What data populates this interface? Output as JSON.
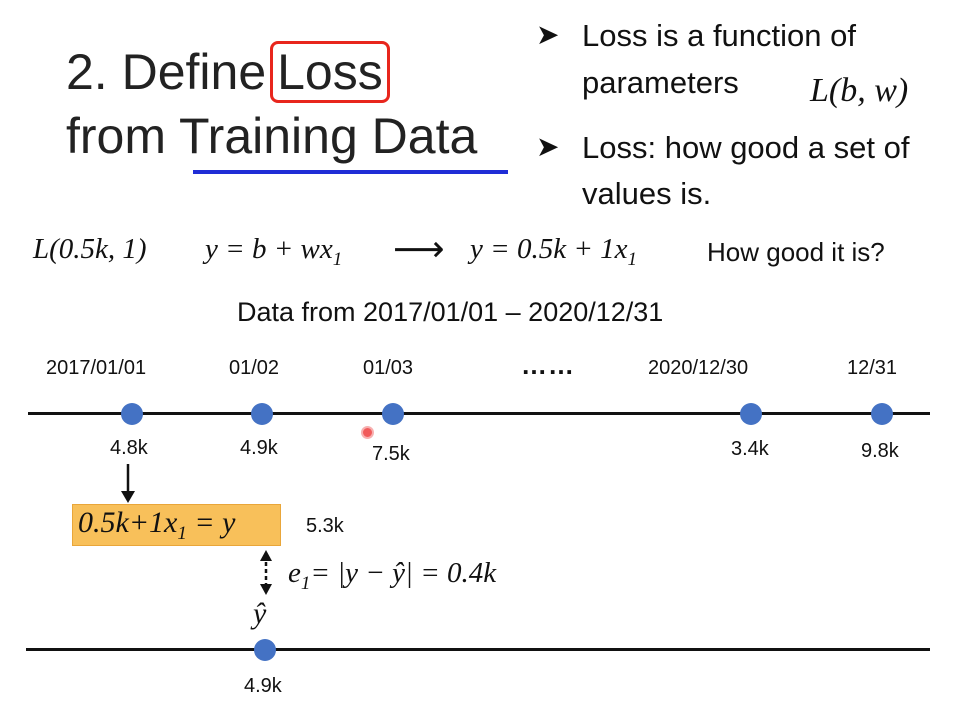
{
  "title": {
    "prefix": "2. Define",
    "highlight": "Loss",
    "line2": "from Training Data"
  },
  "bullets": [
    {
      "arrow": "➤",
      "lines": [
        "Loss is a function of",
        "parameters"
      ]
    },
    {
      "arrow": "➤",
      "lines": [
        "Loss: how good a set of",
        "values is."
      ]
    }
  ],
  "loss_notation": "L(b, w)",
  "equation_row": {
    "loss_call": "L(0.5k, 1)",
    "model_lhs": "y = b + wx",
    "model_sub": "1",
    "arrow": "⟶",
    "model_rhs": "y = 0.5k + 1x",
    "model_rhs_sub": "1",
    "question": "How good it is?"
  },
  "data_caption": "Data from 2017/01/01 – 2020/12/31",
  "timeline": {
    "dates": [
      "2017/01/01",
      "01/02",
      "01/03",
      "2020/12/30",
      "12/31"
    ],
    "ellipsis": "……",
    "values": [
      "4.8k",
      "4.9k",
      "7.5k",
      "3.4k",
      "9.8k"
    ]
  },
  "prediction": {
    "formula_left": "0.5k+1x",
    "formula_sub": "1",
    "formula_right": " = y",
    "predicted_value": "5.3k",
    "error_label": "e",
    "error_sub": "1",
    "error_expr": "= |y − ŷ| = 0.4k",
    "yhat": "ŷ",
    "truth_value": "4.9k"
  },
  "colors": {
    "loss_box": "#e8261d",
    "underline": "#1f2dd6",
    "point": "#4472c4",
    "prediction_box": "#f8c05a"
  }
}
